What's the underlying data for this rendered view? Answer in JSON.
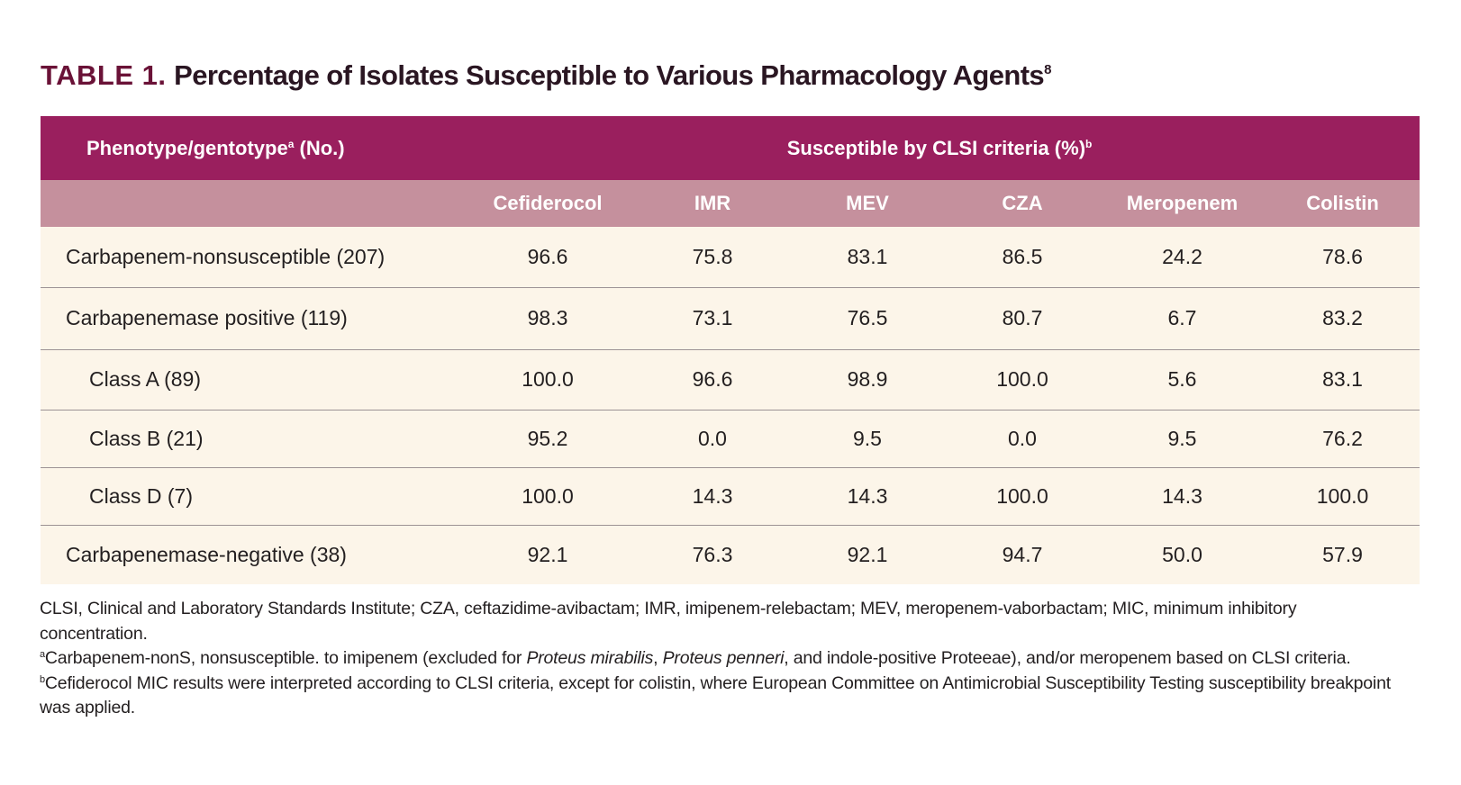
{
  "title": {
    "label": "TABLE 1.",
    "text": "Percentage of Isolates Susceptible to Various Pharmacology Agents",
    "ref": "8"
  },
  "header": {
    "phenotype": "Phenotype/gentotype",
    "phenotype_sup": "a",
    "phenotype_suffix": " (No.)",
    "susceptible": "Susceptible by CLSI criteria (%)",
    "susceptible_sup": "b"
  },
  "columns": [
    "Cefiderocol",
    "IMR",
    "MEV",
    "CZA",
    "Meropenem",
    "Colistin"
  ],
  "rows": [
    {
      "name": "Carbapenem-nonsusceptible (207)",
      "values": [
        "96.6",
        "75.8",
        "83.1",
        "86.5",
        "24.2",
        "78.6"
      ]
    },
    {
      "name": "Carbapenemase positive (119)",
      "values": [
        "98.3",
        "73.1",
        "76.5",
        "80.7",
        "6.7",
        "83.2"
      ]
    },
    {
      "name": "Class A (89)",
      "values": [
        "100.0",
        "96.6",
        "98.9",
        "100.0",
        "5.6",
        "83.1"
      ]
    },
    {
      "name": "Class B (21)",
      "values": [
        "95.2",
        "0.0",
        "9.5",
        "0.0",
        "9.5",
        "76.2"
      ]
    },
    {
      "name": "Class D (7)",
      "values": [
        "100.0",
        "14.3",
        "14.3",
        "100.0",
        "14.3",
        "100.0"
      ]
    },
    {
      "name": "Carbapenemase-negative (38)",
      "values": [
        "92.1",
        "76.3",
        "92.1",
        "94.7",
        "50.0",
        "57.9"
      ]
    }
  ],
  "footnotes": {
    "abbreviations": "CLSI, Clinical and Laboratory Standards Institute; CZA, ceftazidime-avibactam; IMR, imipenem-relebactam; MEV, meropenem-vaborbactam; MIC, minimum inhibitory concentration.",
    "a": {
      "mark": "a",
      "text_1": "Carbapenem-nonS, nonsusceptible. to imipenem (excluded for ",
      "italic_1": "Proteus mirabilis",
      "text_2": ", ",
      "italic_2": "Proteus penneri",
      "text_3": ", and indole-positive Proteeae), and/or meropenem based on CLSI criteria."
    },
    "b": {
      "mark": "b",
      "text": "Cefiderocol MIC results were interpreted according to CLSI criteria, except for colistin, where European Committee on Antimicrobial Susceptibility Testing susceptibility breakpoint was applied."
    }
  },
  "colors": {
    "header_primary": "#9a1f5e",
    "header_secondary": "#c5909d",
    "row_background": "#fcf5e9",
    "title_label": "#6a1237"
  }
}
